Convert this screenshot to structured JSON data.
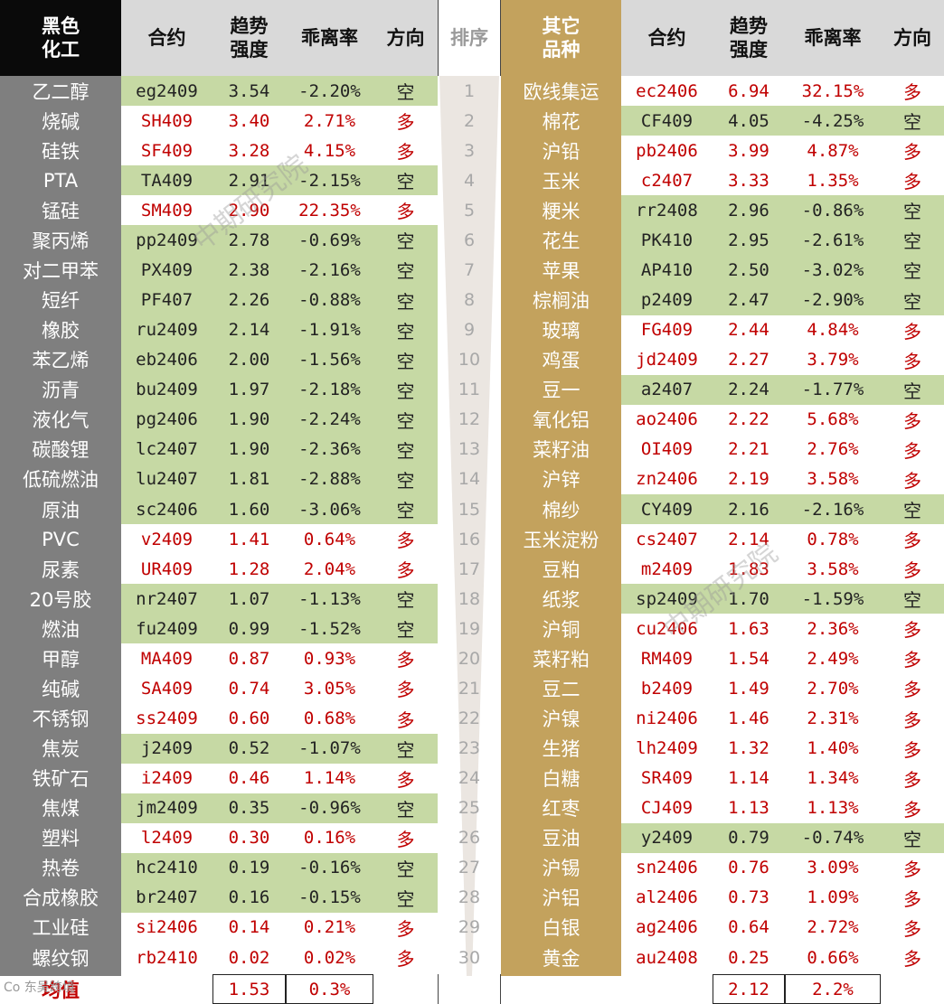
{
  "left_header": {
    "sector": "黑色化工",
    "contract": "合约",
    "trend": "趋势强度",
    "deviation": "乖离率",
    "direction": "方向"
  },
  "rank_header": "排序",
  "right_header": {
    "sector": "其它品种",
    "contract": "合约",
    "trend": "趋势强度",
    "deviation": "乖离率",
    "direction": "方向"
  },
  "left_rows": [
    {
      "name": "乙二醇",
      "contract": "eg2409",
      "trend": "3.54",
      "deviation": "-2.20%",
      "direction": "空"
    },
    {
      "name": "烧碱",
      "contract": "SH409",
      "trend": "3.40",
      "deviation": "2.71%",
      "direction": "多"
    },
    {
      "name": "硅铁",
      "contract": "SF409",
      "trend": "3.28",
      "deviation": "4.15%",
      "direction": "多"
    },
    {
      "name": "PTA",
      "contract": "TA409",
      "trend": "2.91",
      "deviation": "-2.15%",
      "direction": "空"
    },
    {
      "name": "锰硅",
      "contract": "SM409",
      "trend": "2.90",
      "deviation": "22.35%",
      "direction": "多"
    },
    {
      "name": "聚丙烯",
      "contract": "pp2409",
      "trend": "2.78",
      "deviation": "-0.69%",
      "direction": "空"
    },
    {
      "name": "对二甲苯",
      "contract": "PX409",
      "trend": "2.38",
      "deviation": "-2.16%",
      "direction": "空"
    },
    {
      "name": "短纤",
      "contract": "PF407",
      "trend": "2.26",
      "deviation": "-0.88%",
      "direction": "空"
    },
    {
      "name": "橡胶",
      "contract": "ru2409",
      "trend": "2.14",
      "deviation": "-1.91%",
      "direction": "空"
    },
    {
      "name": "苯乙烯",
      "contract": "eb2406",
      "trend": "2.00",
      "deviation": "-1.56%",
      "direction": "空"
    },
    {
      "name": "沥青",
      "contract": "bu2409",
      "trend": "1.97",
      "deviation": "-2.18%",
      "direction": "空"
    },
    {
      "name": "液化气",
      "contract": "pg2406",
      "trend": "1.90",
      "deviation": "-2.24%",
      "direction": "空"
    },
    {
      "name": "碳酸锂",
      "contract": "lc2407",
      "trend": "1.90",
      "deviation": "-2.36%",
      "direction": "空"
    },
    {
      "name": "低硫燃油",
      "contract": "lu2407",
      "trend": "1.81",
      "deviation": "-2.88%",
      "direction": "空"
    },
    {
      "name": "原油",
      "contract": "sc2406",
      "trend": "1.60",
      "deviation": "-3.06%",
      "direction": "空"
    },
    {
      "name": "PVC",
      "contract": "v2409",
      "trend": "1.41",
      "deviation": "0.64%",
      "direction": "多"
    },
    {
      "name": "尿素",
      "contract": "UR409",
      "trend": "1.28",
      "deviation": "2.04%",
      "direction": "多"
    },
    {
      "name": "20号胶",
      "contract": "nr2407",
      "trend": "1.07",
      "deviation": "-1.13%",
      "direction": "空"
    },
    {
      "name": "燃油",
      "contract": "fu2409",
      "trend": "0.99",
      "deviation": "-1.52%",
      "direction": "空"
    },
    {
      "name": "甲醇",
      "contract": "MA409",
      "trend": "0.87",
      "deviation": "0.93%",
      "direction": "多"
    },
    {
      "name": "纯碱",
      "contract": "SA409",
      "trend": "0.74",
      "deviation": "3.05%",
      "direction": "多"
    },
    {
      "name": "不锈钢",
      "contract": "ss2409",
      "trend": "0.60",
      "deviation": "0.68%",
      "direction": "多"
    },
    {
      "name": "焦炭",
      "contract": "j2409",
      "trend": "0.52",
      "deviation": "-1.07%",
      "direction": "空"
    },
    {
      "name": "铁矿石",
      "contract": "i2409",
      "trend": "0.46",
      "deviation": "1.14%",
      "direction": "多"
    },
    {
      "name": "焦煤",
      "contract": "jm2409",
      "trend": "0.35",
      "deviation": "-0.96%",
      "direction": "空"
    },
    {
      "name": "塑料",
      "contract": "l2409",
      "trend": "0.30",
      "deviation": "0.16%",
      "direction": "多"
    },
    {
      "name": "热卷",
      "contract": "hc2410",
      "trend": "0.19",
      "deviation": "-0.16%",
      "direction": "空"
    },
    {
      "name": "合成橡胶",
      "contract": "br2407",
      "trend": "0.16",
      "deviation": "-0.15%",
      "direction": "空"
    },
    {
      "name": "工业硅",
      "contract": "si2406",
      "trend": "0.14",
      "deviation": "0.21%",
      "direction": "多"
    },
    {
      "name": "螺纹钢",
      "contract": "rb2410",
      "trend": "0.02",
      "deviation": "0.02%",
      "direction": "多"
    }
  ],
  "right_rows": [
    {
      "name": "欧线集运",
      "contract": "ec2406",
      "trend": "6.94",
      "deviation": "32.15%",
      "direction": "多"
    },
    {
      "name": "棉花",
      "contract": "CF409",
      "trend": "4.05",
      "deviation": "-4.25%",
      "direction": "空"
    },
    {
      "name": "沪铅",
      "contract": "pb2406",
      "trend": "3.99",
      "deviation": "4.87%",
      "direction": "多"
    },
    {
      "name": "玉米",
      "contract": "c2407",
      "trend": "3.33",
      "deviation": "1.35%",
      "direction": "多"
    },
    {
      "name": "粳米",
      "contract": "rr2408",
      "trend": "2.96",
      "deviation": "-0.86%",
      "direction": "空"
    },
    {
      "name": "花生",
      "contract": "PK410",
      "trend": "2.95",
      "deviation": "-2.61%",
      "direction": "空"
    },
    {
      "name": "苹果",
      "contract": "AP410",
      "trend": "2.50",
      "deviation": "-3.02%",
      "direction": "空"
    },
    {
      "name": "棕榈油",
      "contract": "p2409",
      "trend": "2.47",
      "deviation": "-2.90%",
      "direction": "空"
    },
    {
      "name": "玻璃",
      "contract": "FG409",
      "trend": "2.44",
      "deviation": "4.84%",
      "direction": "多"
    },
    {
      "name": "鸡蛋",
      "contract": "jd2409",
      "trend": "2.27",
      "deviation": "3.79%",
      "direction": "多"
    },
    {
      "name": "豆一",
      "contract": "a2407",
      "trend": "2.24",
      "deviation": "-1.77%",
      "direction": "空"
    },
    {
      "name": "氧化铝",
      "contract": "ao2406",
      "trend": "2.22",
      "deviation": "5.68%",
      "direction": "多"
    },
    {
      "name": "菜籽油",
      "contract": "OI409",
      "trend": "2.21",
      "deviation": "2.76%",
      "direction": "多"
    },
    {
      "name": "沪锌",
      "contract": "zn2406",
      "trend": "2.19",
      "deviation": "3.58%",
      "direction": "多"
    },
    {
      "name": "棉纱",
      "contract": "CY409",
      "trend": "2.16",
      "deviation": "-2.16%",
      "direction": "空"
    },
    {
      "name": "玉米淀粉",
      "contract": "cs2407",
      "trend": "2.14",
      "deviation": "0.78%",
      "direction": "多"
    },
    {
      "name": "豆粕",
      "contract": "m2409",
      "trend": "1.83",
      "deviation": "3.58%",
      "direction": "多"
    },
    {
      "name": "纸浆",
      "contract": "sp2409",
      "trend": "1.70",
      "deviation": "-1.59%",
      "direction": "空"
    },
    {
      "name": "沪铜",
      "contract": "cu2406",
      "trend": "1.63",
      "deviation": "2.36%",
      "direction": "多"
    },
    {
      "name": "菜籽粕",
      "contract": "RM409",
      "trend": "1.54",
      "deviation": "2.49%",
      "direction": "多"
    },
    {
      "name": "豆二",
      "contract": "b2409",
      "trend": "1.49",
      "deviation": "2.70%",
      "direction": "多"
    },
    {
      "name": "沪镍",
      "contract": "ni2406",
      "trend": "1.46",
      "deviation": "2.31%",
      "direction": "多"
    },
    {
      "name": "生猪",
      "contract": "lh2409",
      "trend": "1.32",
      "deviation": "1.40%",
      "direction": "多"
    },
    {
      "name": "白糖",
      "contract": "SR409",
      "trend": "1.14",
      "deviation": "1.34%",
      "direction": "多"
    },
    {
      "name": "红枣",
      "contract": "CJ409",
      "trend": "1.13",
      "deviation": "1.13%",
      "direction": "多"
    },
    {
      "name": "豆油",
      "contract": "y2409",
      "trend": "0.79",
      "deviation": "-0.74%",
      "direction": "空"
    },
    {
      "name": "沪锡",
      "contract": "sn2406",
      "trend": "0.76",
      "deviation": "3.09%",
      "direction": "多"
    },
    {
      "name": "沪铝",
      "contract": "al2406",
      "trend": "0.73",
      "deviation": "1.09%",
      "direction": "多"
    },
    {
      "name": "白银",
      "contract": "ag2406",
      "trend": "0.64",
      "deviation": "2.72%",
      "direction": "多"
    },
    {
      "name": "黄金",
      "contract": "au2408",
      "trend": "0.25",
      "deviation": "0.66%",
      "direction": "多"
    }
  ],
  "footer": {
    "label": "均值",
    "left_trend_avg": "1.53",
    "left_deviation_avg": "0.3%",
    "right_trend_avg": "2.12",
    "right_deviation_avg": "2.2%"
  },
  "watermark": "中期研究院",
  "logo_text": "Co 东吴跨境",
  "colors": {
    "left_header_bg": "#0a0a0a",
    "left_header_text": "#ffffff",
    "left_name_bg": "#7f7f7f",
    "right_header_bg": "#c3a25d",
    "right_name_bg": "#c3a25d",
    "col_header_bg": "#d9d9d9",
    "short_bg": "#c6d9a4",
    "long_text": "#c00000",
    "short_text": "#222222",
    "rank_text": "#a8a8a8"
  }
}
